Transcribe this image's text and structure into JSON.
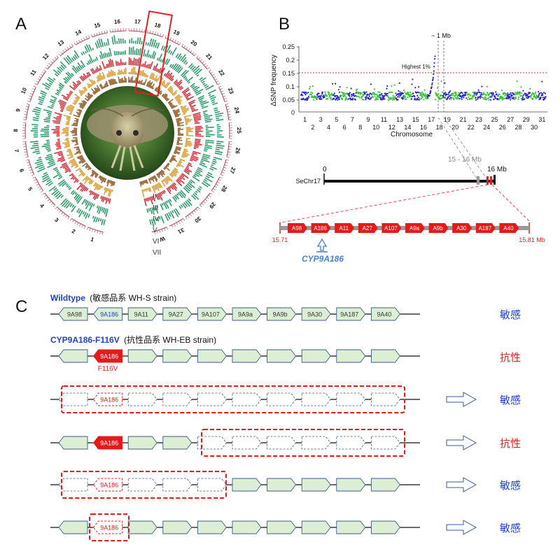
{
  "panelA": {
    "letter": "A",
    "chromosomes": [
      "1",
      "2",
      "3",
      "4",
      "5",
      "6",
      "7",
      "8",
      "9",
      "10",
      "11",
      "12",
      "13",
      "14",
      "15",
      "16",
      "17",
      "18",
      "19",
      "20",
      "21",
      "22",
      "23",
      "24",
      "25",
      "26",
      "27",
      "28",
      "29",
      "30",
      "31",
      "W"
    ],
    "ring_labels": [
      "II",
      "III",
      "IV",
      "V",
      "VI",
      "VII"
    ],
    "colors": {
      "green": "#2e9b6a",
      "gold": "#d9a13a",
      "red": "#d0303a",
      "brown": "#9a6b3c",
      "ticks": "#b04050",
      "highlight": "#e02020"
    }
  },
  "panelB": {
    "letter": "B",
    "manhattan": {
      "ylabel": "ΔSNP frequency",
      "xlabel": "Chromosome",
      "yticks": [
        "0.25",
        "0.2",
        "0.15",
        "0.1",
        "0.05",
        "0"
      ],
      "threshold_label": "Highest 1%",
      "peak_label": "~ 1 Mb",
      "xticks_top": [
        "1",
        "3",
        "5",
        "7",
        "9",
        "11",
        "13",
        "15",
        "17",
        "19",
        "21",
        "23",
        "25",
        "27",
        "29",
        "31"
      ],
      "xticks_bottom": [
        "2",
        "4",
        "6",
        "8",
        "10",
        "12",
        "14",
        "16",
        "18",
        "20",
        "22",
        "24",
        "26",
        "28",
        "30"
      ],
      "colors": {
        "blue": "#2323c8",
        "green": "#3cc03c",
        "threshold": "#d03030"
      }
    },
    "chrom_map": {
      "name": "SeChr17",
      "start_label": "0",
      "end_label": "16 Mb",
      "zoom_label": "15 - 16 Mb"
    },
    "cluster": {
      "genes": [
        "A98",
        "A186",
        "A11",
        "A27",
        "A107",
        "A9a",
        "A9b",
        "A30",
        "A187",
        "A40"
      ],
      "left_coord": "15.71",
      "right_coord": "15.81 Mb",
      "highlight_gene": "CYP9A186"
    }
  },
  "panelC": {
    "letter": "C",
    "wildtype": {
      "title": "Wildtype",
      "subtitle": "(敏感品系  WH-S strain)",
      "phenotype": "敏感"
    },
    "mutant": {
      "title": "CYP9A186-F116V",
      "subtitle": "(抗性品系   WH-EB strain)",
      "gene_label": "9A186",
      "mutation": "F116V",
      "phenotype": "抗性"
    },
    "genes": [
      "9A98",
      "9A186",
      "9A11",
      "9A27",
      "9A107",
      "9A9a",
      "9A9b",
      "9A30",
      "9A187",
      "9A40"
    ],
    "deletion_rows": [
      {
        "label": "9A186",
        "phenotype": "敏感"
      },
      {
        "label": "9A186",
        "phenotype": "抗性"
      },
      {
        "label": "9A186",
        "phenotype": "敏感"
      },
      {
        "label": "9A186",
        "phenotype": "敏感"
      }
    ],
    "colors": {
      "gene_fill": "#dcefd4",
      "gene_stroke": "#3a5a8a",
      "mutant_fill": "#e51b1b",
      "sensitive": "#1f3fcf",
      "resistant": "#e01b1b",
      "deletion_box": "#e01b1b"
    }
  }
}
